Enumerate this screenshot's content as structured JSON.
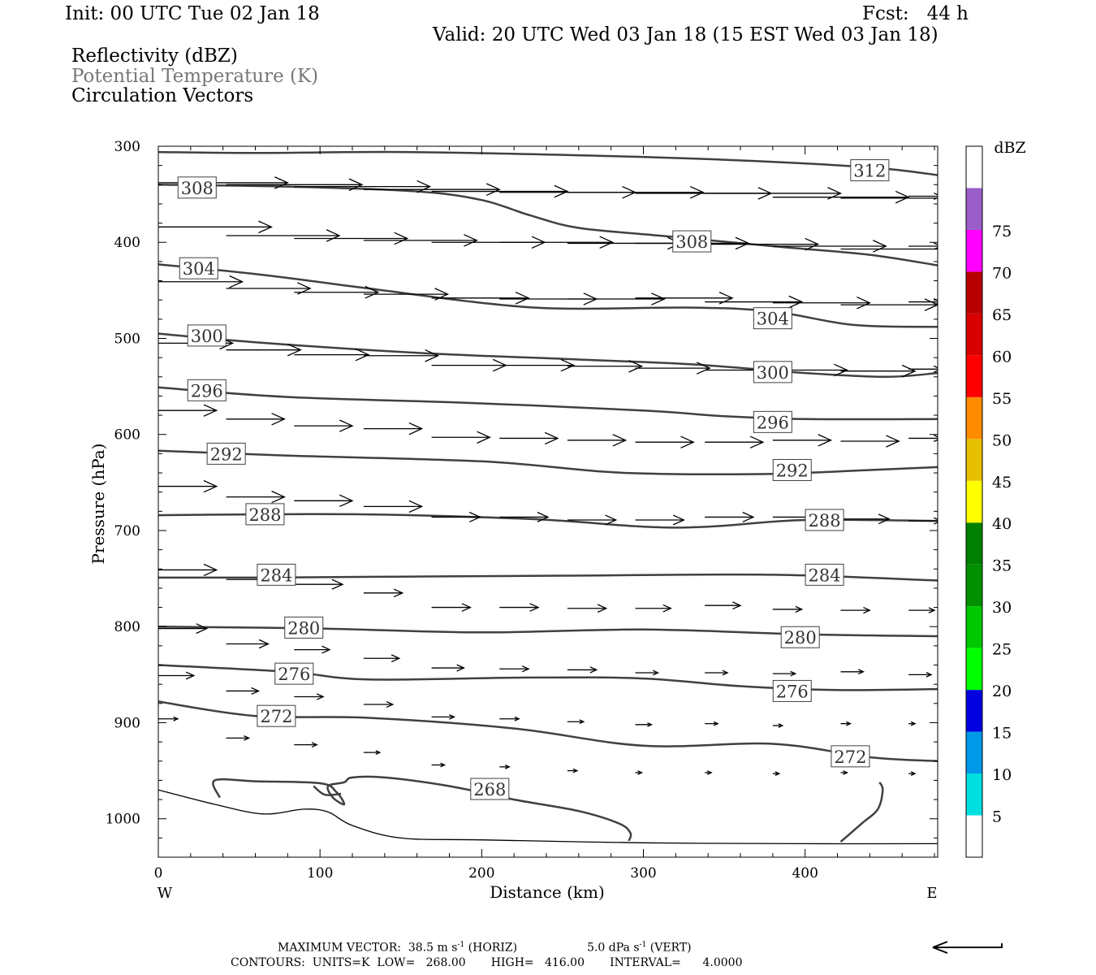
{
  "header": {
    "init": "Init: 00 UTC Tue 02 Jan 18",
    "fcst": "Fcst:   44 h",
    "valid": "Valid: 20 UTC Wed 03 Jan 18 (15 EST Wed 03 Jan 18)",
    "field1": "Reflectivity (dBZ)",
    "field2": "Potential Temperature (K)",
    "field3": "Circulation Vectors"
  },
  "colors": {
    "contour": "#404040",
    "vector": "#000000",
    "field2_text": "#777777"
  },
  "chart_data": {
    "type": "cross-section",
    "xlabel": "Distance (km)",
    "ylabel": "Pressure (hPa)",
    "xlim": [
      0,
      482
    ],
    "ylim": [
      300,
      1040
    ],
    "y_inverted": true,
    "x_ticks": [
      0,
      100,
      200,
      300,
      400
    ],
    "y_ticks": [
      300,
      400,
      500,
      600,
      700,
      800,
      900,
      1000
    ],
    "x_end_labels": {
      "left": "W",
      "right": "E"
    },
    "colorbar": {
      "title": "dBZ",
      "labels": [
        "5",
        "10",
        "15",
        "20",
        "25",
        "30",
        "35",
        "40",
        "45",
        "50",
        "55",
        "60",
        "65",
        "70",
        "75"
      ],
      "colors": [
        "#ffffff",
        "#00e0e0",
        "#0098e8",
        "#0000e0",
        "#00ff00",
        "#00c800",
        "#009000",
        "#008000",
        "#ffff00",
        "#e6c000",
        "#ff8c00",
        "#ff0000",
        "#d80000",
        "#b80000",
        "#ff00ff",
        "#9a5ec8",
        "#ffffff"
      ]
    },
    "contours": [
      {
        "label": "312",
        "points": [
          [
            0,
            306
          ],
          [
            60,
            307
          ],
          [
            150,
            306
          ],
          [
            250,
            309
          ],
          [
            350,
            314
          ],
          [
            440,
            322
          ],
          [
            482,
            330
          ]
        ],
        "label_at": [
          440,
          325
        ]
      },
      {
        "label": "308",
        "points": [
          [
            0,
            340
          ],
          [
            80,
            342
          ],
          [
            160,
            347
          ],
          [
            200,
            356
          ],
          [
            230,
            372
          ],
          [
            260,
            385
          ],
          [
            310,
            393
          ],
          [
            380,
            404
          ],
          [
            440,
            413
          ],
          [
            482,
            424
          ]
        ],
        "label_at": [
          330,
          399
        ]
      },
      {
        "label": "308",
        "points": [],
        "label_at": [
          24,
          343
        ]
      },
      {
        "label": "304",
        "points": [
          [
            0,
            423
          ],
          [
            60,
            433
          ],
          [
            130,
            448
          ],
          [
            200,
            463
          ],
          [
            250,
            469
          ],
          [
            330,
            468
          ],
          [
            380,
            472
          ],
          [
            430,
            486
          ],
          [
            482,
            488
          ]
        ],
        "label_at": [
          25,
          427
        ]
      },
      {
        "label": "304",
        "points": [],
        "label_at": [
          380,
          479
        ]
      },
      {
        "label": "300",
        "points": [
          [
            0,
            495
          ],
          [
            60,
            504
          ],
          [
            160,
            515
          ],
          [
            260,
            522
          ],
          [
            330,
            527
          ],
          [
            400,
            536
          ],
          [
            450,
            540
          ],
          [
            482,
            536
          ]
        ],
        "label_at": [
          30,
          497
        ]
      },
      {
        "label": "300",
        "points": [],
        "label_at": [
          380,
          535
        ]
      },
      {
        "label": "296",
        "points": [
          [
            0,
            551
          ],
          [
            80,
            561
          ],
          [
            190,
            567
          ],
          [
            300,
            575
          ],
          [
            350,
            581
          ],
          [
            400,
            584
          ],
          [
            482,
            584
          ]
        ],
        "label_at": [
          30,
          554
        ]
      },
      {
        "label": "296",
        "points": [],
        "label_at": [
          380,
          587
        ]
      },
      {
        "label": "292",
        "points": [
          [
            0,
            617
          ],
          [
            80,
            622
          ],
          [
            200,
            628
          ],
          [
            270,
            638
          ],
          [
            310,
            641
          ],
          [
            380,
            641
          ],
          [
            440,
            637
          ],
          [
            482,
            634
          ]
        ],
        "label_at": [
          42,
          620
        ]
      },
      {
        "label": "292",
        "points": [],
        "label_at": [
          392,
          637
        ]
      },
      {
        "label": "288",
        "points": [
          [
            0,
            684
          ],
          [
            120,
            683
          ],
          [
            230,
            688
          ],
          [
            300,
            696
          ],
          [
            340,
            696
          ],
          [
            400,
            689
          ],
          [
            482,
            690
          ]
        ],
        "label_at": [
          66,
          683
        ]
      },
      {
        "label": "288",
        "points": [],
        "label_at": [
          412,
          689
        ]
      },
      {
        "label": "284",
        "points": [
          [
            0,
            749
          ],
          [
            60,
            749
          ],
          [
            150,
            748
          ],
          [
            250,
            747
          ],
          [
            380,
            746
          ],
          [
            482,
            752
          ]
        ],
        "label_at": [
          73,
          746
        ]
      },
      {
        "label": "284",
        "points": [],
        "label_at": [
          412,
          746
        ]
      },
      {
        "label": "280",
        "points": [
          [
            0,
            800
          ],
          [
            100,
            802
          ],
          [
            200,
            806
          ],
          [
            300,
            803
          ],
          [
            400,
            808
          ],
          [
            482,
            810
          ]
        ],
        "label_at": [
          90,
          801
        ]
      },
      {
        "label": "280",
        "points": [],
        "label_at": [
          397,
          811
        ]
      },
      {
        "label": "276",
        "points": [
          [
            0,
            840
          ],
          [
            80,
            847
          ],
          [
            130,
            855
          ],
          [
            230,
            853
          ],
          [
            300,
            854
          ],
          [
            360,
            862
          ],
          [
            420,
            866
          ],
          [
            482,
            865
          ]
        ],
        "label_at": [
          84,
          849
        ]
      },
      {
        "label": "276",
        "points": [],
        "label_at": [
          392,
          867
        ]
      },
      {
        "label": "272",
        "points": [
          [
            0,
            878
          ],
          [
            60,
            893
          ],
          [
            130,
            895
          ],
          [
            220,
            906
          ],
          [
            300,
            924
          ],
          [
            380,
            922
          ],
          [
            440,
            936
          ],
          [
            482,
            940
          ]
        ],
        "label_at": [
          73,
          893
        ]
      },
      {
        "label": "272",
        "points": [],
        "label_at": [
          428,
          935
        ]
      },
      {
        "label": "268",
        "points": [
          [
            38,
            978
          ],
          [
            35,
            960
          ],
          [
            60,
            961
          ],
          [
            100,
            963
          ],
          [
            110,
            972
          ],
          [
            115,
            985
          ],
          [
            108,
            978
          ],
          [
            105,
            966
          ],
          [
            115,
            962
          ],
          [
            120,
            957
          ],
          [
            140,
            957
          ],
          [
            180,
            966
          ],
          [
            220,
            980
          ],
          [
            260,
            992
          ],
          [
            285,
            1005
          ],
          [
            292,
            1015
          ],
          [
            291,
            1023
          ]
        ],
        "label_at": [
          205,
          969
        ]
      },
      {
        "label": "",
        "points": [
          [
            96,
            966
          ],
          [
            103,
            975
          ],
          [
            113,
            974
          ]
        ],
        "label_at": null
      },
      {
        "label": "",
        "points": [
          [
            422,
            1024
          ],
          [
            435,
            1005
          ],
          [
            445,
            990
          ],
          [
            448,
            970
          ],
          [
            446,
            962
          ]
        ],
        "label_at": null
      }
    ],
    "terrain_pressure": [
      [
        0,
        970
      ],
      [
        35,
        985
      ],
      [
        65,
        995
      ],
      [
        90,
        990
      ],
      [
        105,
        993
      ],
      [
        120,
        1007
      ],
      [
        150,
        1020
      ],
      [
        200,
        1022
      ],
      [
        300,
        1025
      ],
      [
        400,
        1026
      ],
      [
        482,
        1026
      ]
    ],
    "vectors": [
      {
        "x": 0,
        "p": 338,
        "u": 80
      },
      {
        "x": 42,
        "p": 340,
        "u": 84
      },
      {
        "x": 84,
        "p": 342,
        "u": 84
      },
      {
        "x": 127,
        "p": 345,
        "u": 84
      },
      {
        "x": 169,
        "p": 347,
        "u": 84
      },
      {
        "x": 211,
        "p": 348,
        "u": 84
      },
      {
        "x": 253,
        "p": 348,
        "u": 84
      },
      {
        "x": 295,
        "p": 349,
        "u": 84
      },
      {
        "x": 338,
        "p": 349,
        "u": 84
      },
      {
        "x": 380,
        "p": 353,
        "u": 84
      },
      {
        "x": 422,
        "p": 354,
        "u": 84
      },
      {
        "x": 464,
        "p": 352,
        "u": 20
      },
      {
        "x": 0,
        "p": 384,
        "u": 70
      },
      {
        "x": 42,
        "p": 393,
        "u": 70
      },
      {
        "x": 84,
        "p": 396,
        "u": 70
      },
      {
        "x": 127,
        "p": 398,
        "u": 70
      },
      {
        "x": 169,
        "p": 400,
        "u": 70
      },
      {
        "x": 211,
        "p": 400,
        "u": 70
      },
      {
        "x": 253,
        "p": 401,
        "u": 70
      },
      {
        "x": 295,
        "p": 401,
        "u": 70
      },
      {
        "x": 338,
        "p": 402,
        "u": 70
      },
      {
        "x": 380,
        "p": 404,
        "u": 70
      },
      {
        "x": 422,
        "p": 407,
        "u": 70
      },
      {
        "x": 464,
        "p": 404,
        "u": 20
      },
      {
        "x": 0,
        "p": 441,
        "u": 52
      },
      {
        "x": 42,
        "p": 448,
        "u": 52
      },
      {
        "x": 84,
        "p": 452,
        "u": 52
      },
      {
        "x": 127,
        "p": 454,
        "u": 52
      },
      {
        "x": 169,
        "p": 458,
        "u": 60
      },
      {
        "x": 211,
        "p": 459,
        "u": 60
      },
      {
        "x": 253,
        "p": 459,
        "u": 60
      },
      {
        "x": 295,
        "p": 458,
        "u": 60
      },
      {
        "x": 338,
        "p": 462,
        "u": 60
      },
      {
        "x": 380,
        "p": 463,
        "u": 60
      },
      {
        "x": 422,
        "p": 465,
        "u": 60
      },
      {
        "x": 464,
        "p": 462,
        "u": 20
      },
      {
        "x": 0,
        "p": 505,
        "u": 46
      },
      {
        "x": 42,
        "p": 512,
        "u": 46
      },
      {
        "x": 84,
        "p": 517,
        "u": 46
      },
      {
        "x": 127,
        "p": 518,
        "u": 46
      },
      {
        "x": 169,
        "p": 528,
        "u": 46
      },
      {
        "x": 211,
        "p": 528,
        "u": 46
      },
      {
        "x": 253,
        "p": 529,
        "u": 46
      },
      {
        "x": 295,
        "p": 531,
        "u": 46
      },
      {
        "x": 338,
        "p": 533,
        "u": 46
      },
      {
        "x": 380,
        "p": 533,
        "u": 46
      },
      {
        "x": 422,
        "p": 534,
        "u": 46
      },
      {
        "x": 464,
        "p": 532,
        "u": 20
      },
      {
        "x": 0,
        "p": 575,
        "u": 36
      },
      {
        "x": 42,
        "p": 584,
        "u": 36
      },
      {
        "x": 84,
        "p": 591,
        "u": 36
      },
      {
        "x": 127,
        "p": 594,
        "u": 36
      },
      {
        "x": 169,
        "p": 603,
        "u": 36
      },
      {
        "x": 211,
        "p": 604,
        "u": 36
      },
      {
        "x": 253,
        "p": 606,
        "u": 36
      },
      {
        "x": 295,
        "p": 608,
        "u": 36
      },
      {
        "x": 338,
        "p": 608,
        "u": 36
      },
      {
        "x": 380,
        "p": 606,
        "u": 36
      },
      {
        "x": 422,
        "p": 607,
        "u": 36
      },
      {
        "x": 464,
        "p": 604,
        "u": 20
      },
      {
        "x": 0,
        "p": 654,
        "u": 36
      },
      {
        "x": 42,
        "p": 665,
        "u": 36
      },
      {
        "x": 84,
        "p": 669,
        "u": 36
      },
      {
        "x": 127,
        "p": 675,
        "u": 36
      },
      {
        "x": 169,
        "p": 686,
        "u": 30
      },
      {
        "x": 211,
        "p": 686,
        "u": 30
      },
      {
        "x": 253,
        "p": 689,
        "u": 30
      },
      {
        "x": 295,
        "p": 689,
        "u": 30
      },
      {
        "x": 338,
        "p": 686,
        "u": 30
      },
      {
        "x": 380,
        "p": 686,
        "u": 30
      },
      {
        "x": 422,
        "p": 688,
        "u": 30
      },
      {
        "x": 464,
        "p": 690,
        "u": 20
      },
      {
        "x": 0,
        "p": 741,
        "u": 36
      },
      {
        "x": 42,
        "p": 751,
        "u": 36
      },
      {
        "x": 84,
        "p": 756,
        "u": 30
      },
      {
        "x": 127,
        "p": 765,
        "u": 24
      },
      {
        "x": 169,
        "p": 780,
        "u": 24
      },
      {
        "x": 211,
        "p": 780,
        "u": 24
      },
      {
        "x": 253,
        "p": 781,
        "u": 24
      },
      {
        "x": 295,
        "p": 781,
        "u": 22
      },
      {
        "x": 338,
        "p": 778,
        "u": 22
      },
      {
        "x": 380,
        "p": 782,
        "u": 18
      },
      {
        "x": 422,
        "p": 783,
        "u": 18
      },
      {
        "x": 464,
        "p": 783,
        "u": 16
      },
      {
        "x": 0,
        "p": 802,
        "u": 30
      },
      {
        "x": 42,
        "p": 818,
        "u": 26
      },
      {
        "x": 84,
        "p": 824,
        "u": 22
      },
      {
        "x": 127,
        "p": 833,
        "u": 22
      },
      {
        "x": 169,
        "p": 843,
        "u": 20
      },
      {
        "x": 211,
        "p": 844,
        "u": 18
      },
      {
        "x": 253,
        "p": 845,
        "u": 18
      },
      {
        "x": 295,
        "p": 848,
        "u": 14
      },
      {
        "x": 338,
        "p": 848,
        "u": 14
      },
      {
        "x": 380,
        "p": 849,
        "u": 14
      },
      {
        "x": 422,
        "p": 847,
        "u": 14
      },
      {
        "x": 464,
        "p": 850,
        "u": 14
      },
      {
        "x": 0,
        "p": 851,
        "u": 22
      },
      {
        "x": 42,
        "p": 867,
        "u": 20
      },
      {
        "x": 84,
        "p": 873,
        "u": 18
      },
      {
        "x": 127,
        "p": 881,
        "u": 18
      },
      {
        "x": 169,
        "p": 894,
        "u": 14
      },
      {
        "x": 211,
        "p": 896,
        "u": 12
      },
      {
        "x": 253,
        "p": 899,
        "u": 10
      },
      {
        "x": 295,
        "p": 902,
        "u": 10
      },
      {
        "x": 338,
        "p": 901,
        "u": 8
      },
      {
        "x": 380,
        "p": 903,
        "u": 6
      },
      {
        "x": 422,
        "p": 901,
        "u": 6
      },
      {
        "x": 464,
        "p": 901,
        "u": 4
      },
      {
        "x": 0,
        "p": 896,
        "u": 12
      },
      {
        "x": 42,
        "p": 916,
        "u": 14
      },
      {
        "x": 84,
        "p": 923,
        "u": 14
      },
      {
        "x": 127,
        "p": 931,
        "u": 10
      },
      {
        "x": 169,
        "p": 944,
        "u": 8
      },
      {
        "x": 211,
        "p": 946,
        "u": 6
      },
      {
        "x": 253,
        "p": 950,
        "u": 6
      },
      {
        "x": 295,
        "p": 952,
        "u": 4
      },
      {
        "x": 338,
        "p": 952,
        "u": 4
      },
      {
        "x": 380,
        "p": 953,
        "u": 4
      },
      {
        "x": 422,
        "p": 952,
        "u": 4
      },
      {
        "x": 464,
        "p": 953,
        "u": 4
      }
    ]
  },
  "footer": {
    "line1_a": "MAXIMUM VECTOR:  38.5 m s",
    "line1_sup1": "-1",
    "line1_b": " (HORIZ)",
    "line1_c": "5.0 dPa s",
    "line1_sup2": "-1",
    "line1_d": " (VERT)",
    "line2": "CONTOURS:  UNITS=K  LOW=   268.00       HIGH=   416.00       INTERVAL=      4.0000"
  }
}
